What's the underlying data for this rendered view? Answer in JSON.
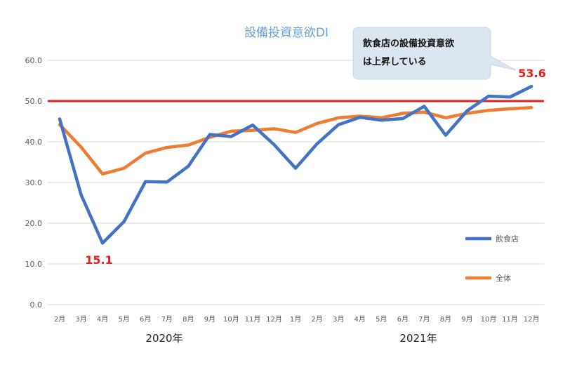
{
  "chart_data": {
    "type": "line",
    "title": "設備投資意欲DI",
    "categories": [
      "2月",
      "3月",
      "4月",
      "5月",
      "6月",
      "7月",
      "8月",
      "9月",
      "10月",
      "11月",
      "12月",
      "1月",
      "2月",
      "3月",
      "4月",
      "5月",
      "6月",
      "7月",
      "8月",
      "9月",
      "10月",
      "11月",
      "12月"
    ],
    "year_labels": [
      "2020年",
      "2021年"
    ],
    "ylim": [
      0,
      60
    ],
    "yticks": [
      "0.0",
      "10.0",
      "20.0",
      "30.0",
      "40.0",
      "50.0",
      "60.0"
    ],
    "reference_line": 50,
    "series": [
      {
        "name": "飲食店",
        "color": "#4472c4",
        "values": [
          45.6,
          27.0,
          15.1,
          20.4,
          30.2,
          30.1,
          34.0,
          41.8,
          41.3,
          44.1,
          39.3,
          33.5,
          39.5,
          44.2,
          46.0,
          45.3,
          45.7,
          48.7,
          41.6,
          47.6,
          51.2,
          51.0,
          53.6
        ]
      },
      {
        "name": "全体",
        "color": "#ed7d31",
        "values": [
          44.2,
          38.7,
          32.1,
          33.5,
          37.2,
          38.6,
          39.2,
          41.1,
          42.6,
          42.8,
          43.2,
          42.3,
          44.5,
          45.9,
          46.3,
          45.9,
          47.0,
          47.3,
          45.9,
          47.0,
          47.7,
          48.1,
          48.4
        ]
      }
    ],
    "annotations": {
      "min_label": "15.1",
      "max_label": "53.6",
      "callout_line1": "飲食店の設備投資意欲",
      "callout_line2": "は上昇している"
    },
    "reference_color": "#e0201b",
    "grid": true,
    "legend_position": "right"
  }
}
